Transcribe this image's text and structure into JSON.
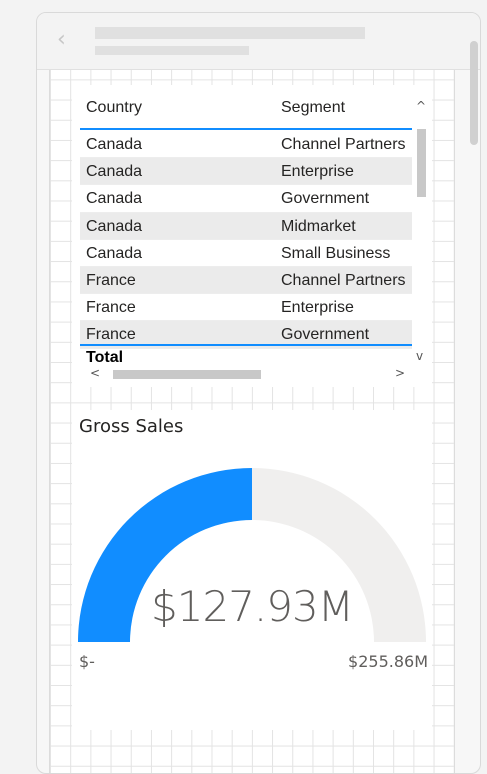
{
  "table": {
    "columns": [
      "Country",
      "Segment"
    ],
    "rows": [
      [
        "Canada",
        "Channel Partners"
      ],
      [
        "Canada",
        "Enterprise"
      ],
      [
        "Canada",
        "Government"
      ],
      [
        "Canada",
        "Midmarket"
      ],
      [
        "Canada",
        "Small Business"
      ],
      [
        "France",
        "Channel Partners"
      ],
      [
        "France",
        "Enterprise"
      ],
      [
        "France",
        "Government"
      ]
    ],
    "total_label": "Total",
    "scroll_up": "^",
    "scroll_down": "v",
    "scroll_left": "<",
    "scroll_right": ">"
  },
  "gauge": {
    "title": "Gross Sales",
    "value_label": "$127.93M",
    "min_label": "$-",
    "max_label": "$255.86M",
    "value": 127.93,
    "min": 0,
    "max": 255.86,
    "fill_color": "#118dff",
    "track_color": "#f0efee"
  },
  "header": {
    "back_icon": "chevron-left-icon"
  },
  "colors": {
    "accent": "#118dff"
  }
}
